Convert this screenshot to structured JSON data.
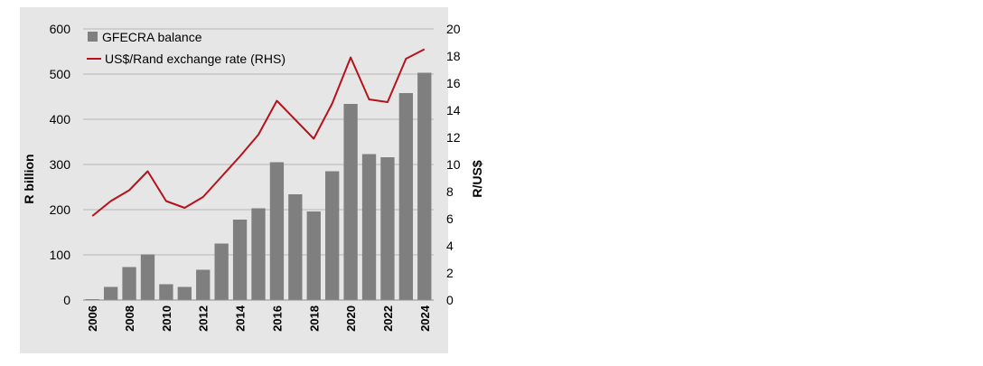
{
  "chart_data": {
    "type": "bar",
    "title": "",
    "xlabel": "",
    "ylabel": "R billion",
    "ylabel_right": "R/US$",
    "x": [
      2006,
      2007,
      2008,
      2009,
      2010,
      2011,
      2012,
      2013,
      2014,
      2015,
      2016,
      2017,
      2018,
      2019,
      2020,
      2021,
      2022,
      2023,
      2024
    ],
    "x_tick_labels": [
      "2006",
      "2008",
      "2010",
      "2012",
      "2014",
      "2016",
      "2018",
      "2020",
      "2022",
      "2024"
    ],
    "ylim": [
      0,
      600
    ],
    "y_ticks": [
      0,
      100,
      200,
      300,
      400,
      500,
      600
    ],
    "y2lim": [
      0,
      20
    ],
    "y2_ticks": [
      0,
      2,
      4,
      6,
      8,
      10,
      12,
      14,
      16,
      18,
      20
    ],
    "grid": "horizontal",
    "legend_position": "top-left",
    "background_color": "#e6e6e6",
    "series": [
      {
        "name": "GFECRA balance",
        "type": "bar",
        "axis": "left",
        "color": "#7f7f7f",
        "values": [
          2,
          29,
          73,
          101,
          35,
          29,
          67,
          125,
          178,
          203,
          305,
          234,
          196,
          285,
          434,
          323,
          316,
          458,
          503
        ]
      },
      {
        "name": "US$/Rand exchange rate (RHS)",
        "type": "line",
        "axis": "right",
        "color": "#b5121b",
        "values": [
          6.2,
          7.3,
          8.1,
          9.5,
          7.3,
          6.8,
          7.6,
          9.1,
          10.6,
          12.2,
          14.7,
          13.3,
          11.9,
          14.5,
          17.9,
          14.8,
          14.6,
          17.8,
          18.5
        ]
      }
    ]
  }
}
